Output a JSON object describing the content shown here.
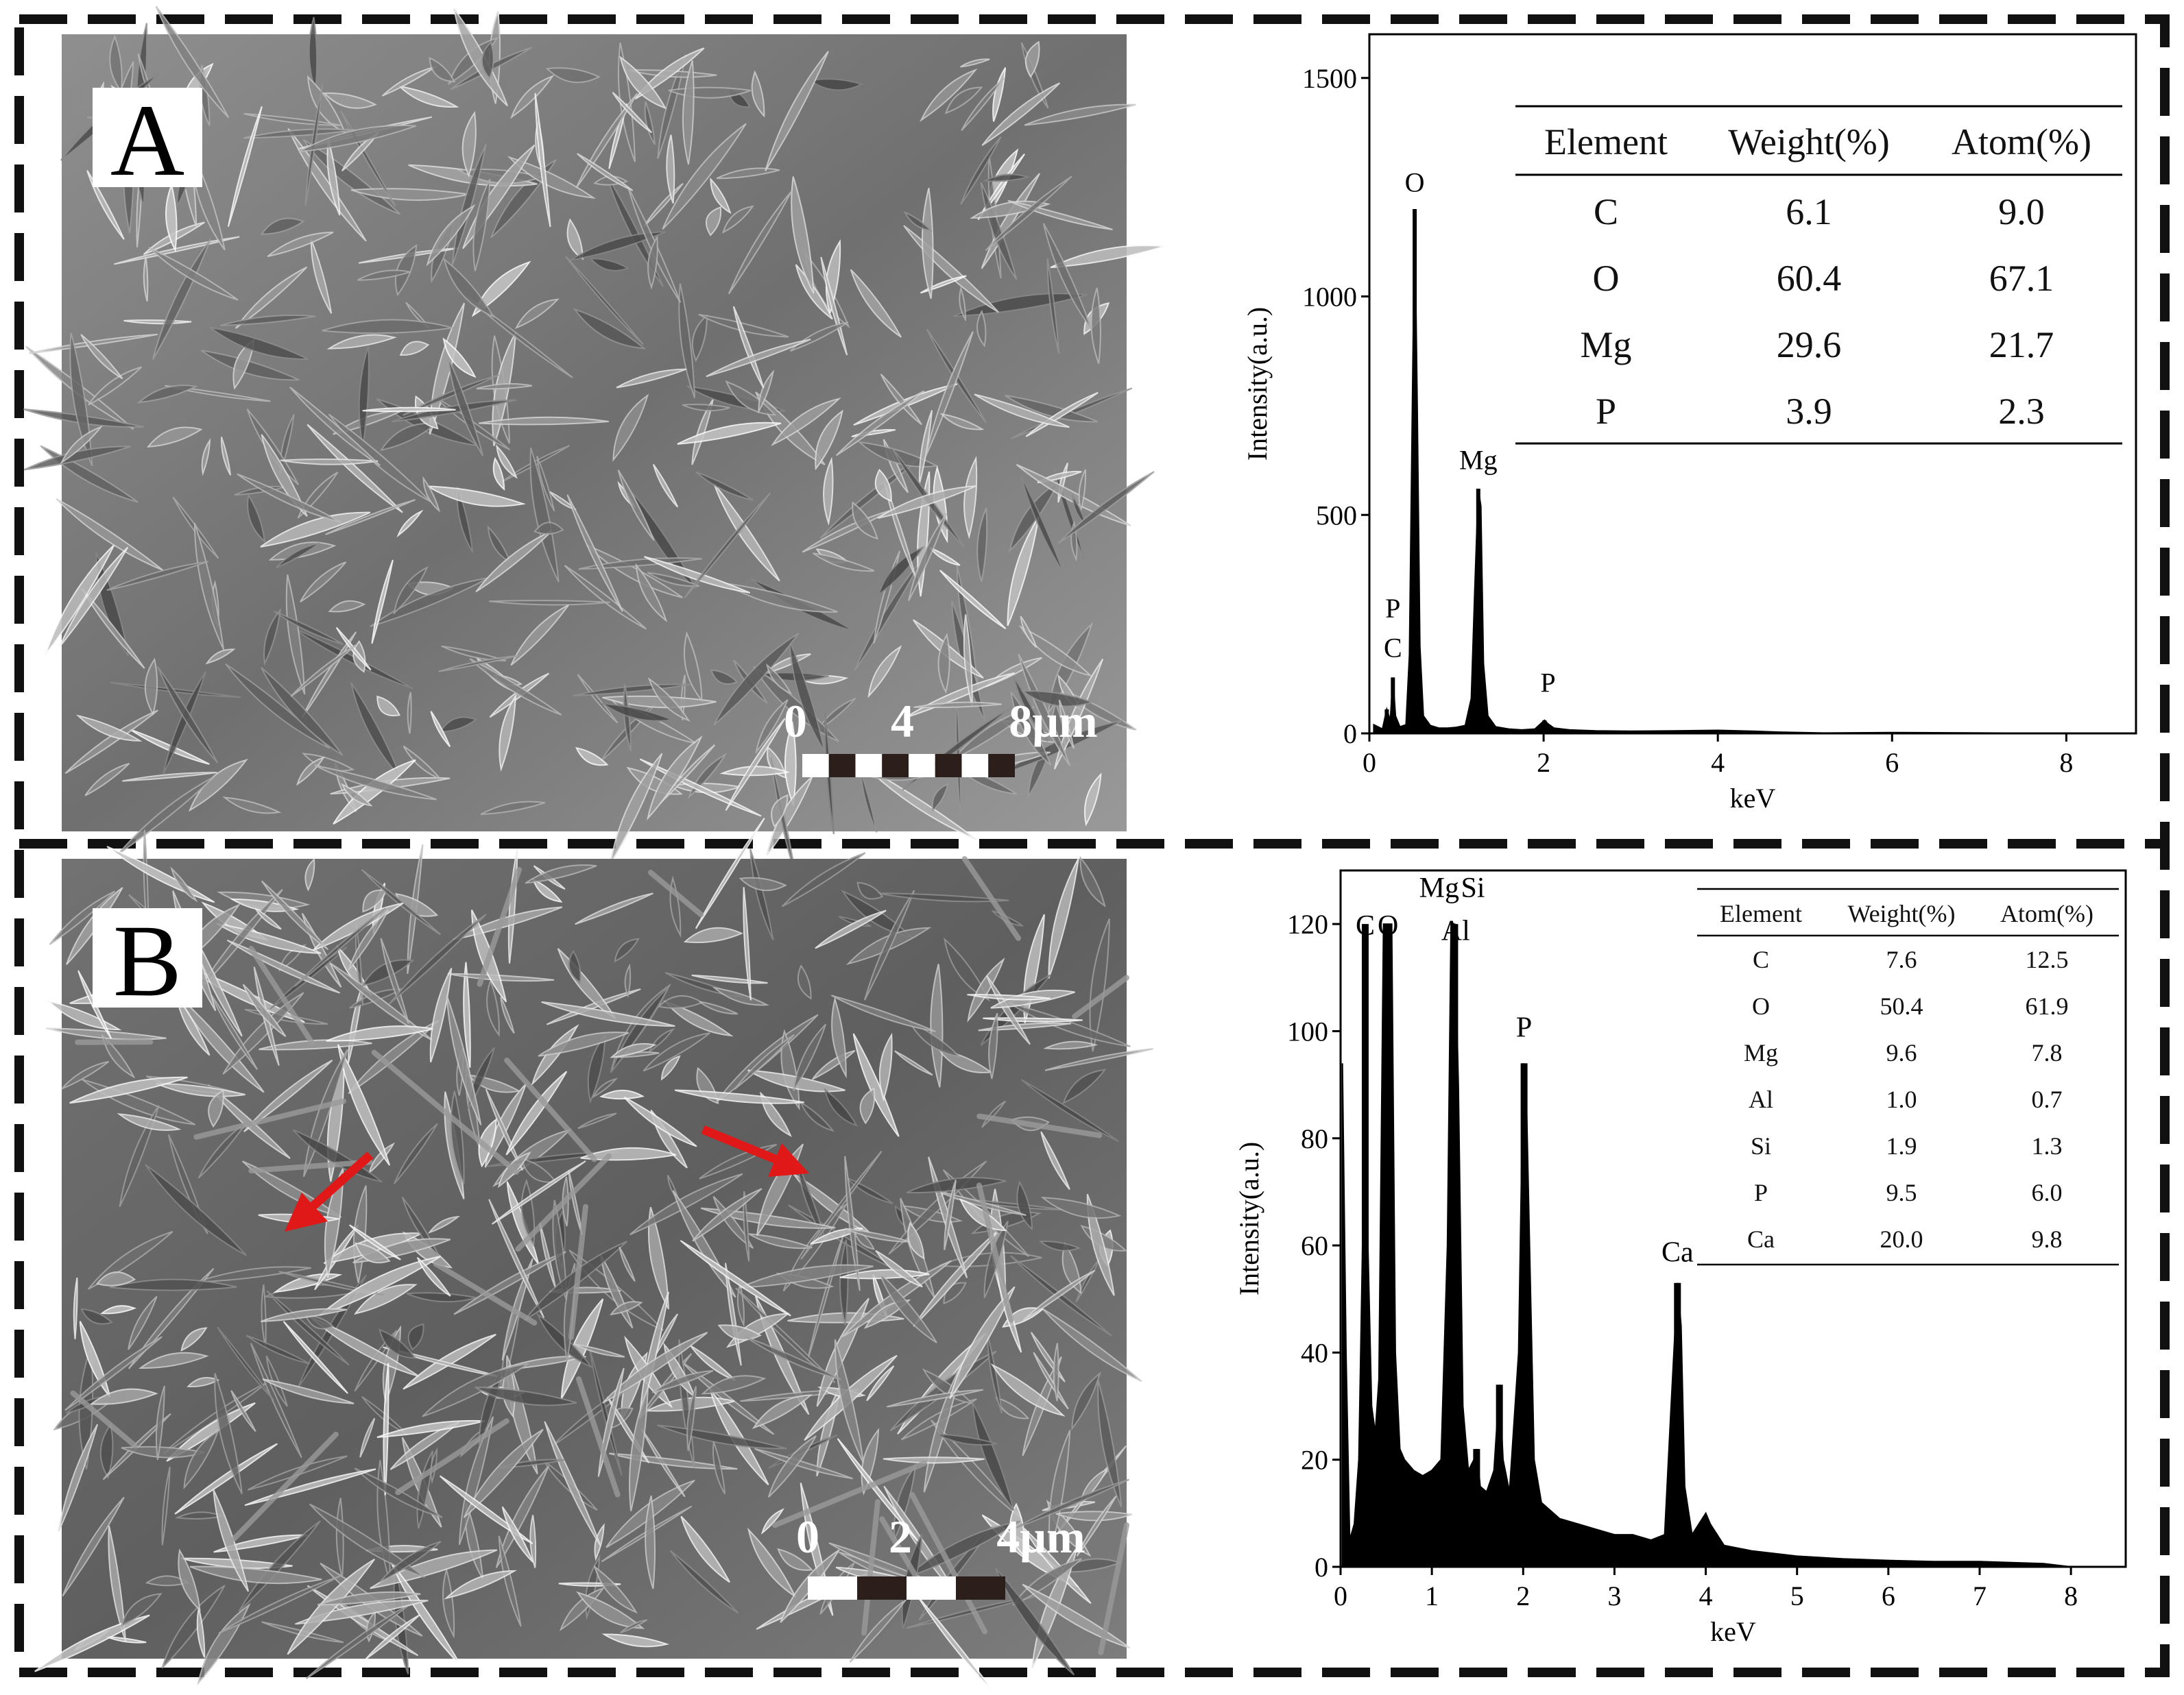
{
  "panels": [
    {
      "label": "A",
      "scale_bar": {
        "ticks": [
          "0",
          "4",
          "8μm"
        ]
      },
      "table": {
        "headers": [
          "Element",
          "Weight(%)",
          "Atom(%)"
        ],
        "rows": [
          [
            "C",
            "6.1",
            "9.0"
          ],
          [
            "O",
            "60.4",
            "67.1"
          ],
          [
            "Mg",
            "29.6",
            "21.7"
          ],
          [
            "P",
            "3.9",
            "2.3"
          ]
        ]
      }
    },
    {
      "label": "B",
      "scale_bar": {
        "ticks": [
          "0",
          "2",
          "4μm"
        ]
      },
      "table": {
        "headers": [
          "Element",
          "Weight(%)",
          "Atom(%)"
        ],
        "rows": [
          [
            "C",
            "7.6",
            "12.5"
          ],
          [
            "O",
            "50.4",
            "61.9"
          ],
          [
            "Mg",
            "9.6",
            "7.8"
          ],
          [
            "Al",
            "1.0",
            "0.7"
          ],
          [
            "Si",
            "1.9",
            "1.3"
          ],
          [
            "P",
            "9.5",
            "6.0"
          ],
          [
            "Ca",
            "20.0",
            "9.8"
          ]
        ]
      }
    }
  ],
  "colors": {
    "frame": "#111111",
    "arrow": "#e01818",
    "sem_bg": "#7a7a7a",
    "spectrum": "#000000"
  },
  "chart_data": [
    {
      "type": "bar",
      "xlabel": "keV",
      "ylabel": "Intensity(a.u.)",
      "xlim": [
        0,
        8.8
      ],
      "ylim": [
        0,
        1600
      ],
      "xticks": [
        0,
        2,
        4,
        6,
        8
      ],
      "yticks": [
        0,
        500,
        1000,
        1500
      ],
      "grid": false,
      "peaks": [
        {
          "label": "C",
          "x": 0.27,
          "y": 128
        },
        {
          "label": "P",
          "x": 0.2,
          "y": 55
        },
        {
          "label": "O",
          "x": 0.52,
          "y": 1200
        },
        {
          "label": "Mg",
          "x": 1.25,
          "y": 560
        },
        {
          "label": "P",
          "x": 2.01,
          "y": 30
        }
      ],
      "peak_labels": [
        {
          "text": "O",
          "x": 0.52,
          "y": 1240
        },
        {
          "text": "Mg",
          "x": 1.25,
          "y": 605
        },
        {
          "text": "P",
          "x": 0.27,
          "y": 265
        },
        {
          "text": "C",
          "x": 0.27,
          "y": 175
        },
        {
          "text": "P",
          "x": 2.05,
          "y": 95
        }
      ],
      "spectrum": [
        [
          0.05,
          20
        ],
        [
          0.15,
          10
        ],
        [
          0.2,
          55
        ],
        [
          0.24,
          30
        ],
        [
          0.27,
          128
        ],
        [
          0.3,
          40
        ],
        [
          0.35,
          15
        ],
        [
          0.42,
          20
        ],
        [
          0.46,
          180
        ],
        [
          0.49,
          700
        ],
        [
          0.52,
          1200
        ],
        [
          0.55,
          740
        ],
        [
          0.58,
          200
        ],
        [
          0.62,
          40
        ],
        [
          0.7,
          18
        ],
        [
          0.8,
          12
        ],
        [
          0.9,
          12
        ],
        [
          1.0,
          14
        ],
        [
          1.1,
          18
        ],
        [
          1.17,
          80
        ],
        [
          1.21,
          330
        ],
        [
          1.25,
          560
        ],
        [
          1.28,
          520
        ],
        [
          1.31,
          160
        ],
        [
          1.36,
          40
        ],
        [
          1.45,
          15
        ],
        [
          1.6,
          10
        ],
        [
          1.75,
          8
        ],
        [
          1.9,
          10
        ],
        [
          2.01,
          30
        ],
        [
          2.05,
          22
        ],
        [
          2.12,
          12
        ],
        [
          2.3,
          8
        ],
        [
          2.6,
          6
        ],
        [
          3.0,
          5
        ],
        [
          3.5,
          6
        ],
        [
          4.0,
          7
        ],
        [
          4.4,
          5
        ],
        [
          4.7,
          3
        ],
        [
          5.2,
          1
        ],
        [
          6.0,
          2
        ],
        [
          8.0,
          0
        ]
      ]
    },
    {
      "type": "bar",
      "xlabel": "keV",
      "ylabel": "Intensity(a.u.)",
      "xlim": [
        0,
        8.6
      ],
      "ylim": [
        0,
        130
      ],
      "xticks": [
        0,
        1,
        2,
        3,
        4,
        5,
        6,
        7,
        8
      ],
      "yticks": [
        0,
        20,
        40,
        60,
        80,
        100,
        120
      ],
      "grid": false,
      "peaks": [
        {
          "label": "C",
          "x": 0.27,
          "y": 120
        },
        {
          "label": "O",
          "x": 0.52,
          "y": 120
        },
        {
          "label": "Mg",
          "x": 1.25,
          "y": 120
        },
        {
          "label": "Al",
          "x": 1.49,
          "y": 22
        },
        {
          "label": "Si",
          "x": 1.74,
          "y": 34
        },
        {
          "label": "P",
          "x": 2.01,
          "y": 94
        },
        {
          "label": "Ca",
          "x": 3.69,
          "y": 53
        }
      ],
      "peak_labels": [
        {
          "text": "C",
          "x": 0.27,
          "y": 118
        },
        {
          "text": "O",
          "x": 0.52,
          "y": 118
        },
        {
          "text": "Mg",
          "x": 1.08,
          "y": 125
        },
        {
          "text": "Si",
          "x": 1.45,
          "y": 125
        },
        {
          "text": "Al",
          "x": 1.26,
          "y": 117
        },
        {
          "text": "P",
          "x": 2.01,
          "y": 99
        },
        {
          "text": "Ca",
          "x": 3.69,
          "y": 57
        }
      ],
      "spectrum": [
        [
          0.02,
          94
        ],
        [
          0.06,
          40
        ],
        [
          0.1,
          5
        ],
        [
          0.15,
          8
        ],
        [
          0.2,
          20
        ],
        [
          0.24,
          60
        ],
        [
          0.27,
          120
        ],
        [
          0.3,
          60
        ],
        [
          0.34,
          30
        ],
        [
          0.38,
          25
        ],
        [
          0.42,
          35
        ],
        [
          0.47,
          120
        ],
        [
          0.52,
          120
        ],
        [
          0.56,
          120
        ],
        [
          0.6,
          40
        ],
        [
          0.65,
          22
        ],
        [
          0.7,
          20
        ],
        [
          0.8,
          18
        ],
        [
          0.9,
          17
        ],
        [
          1.0,
          18
        ],
        [
          1.1,
          20
        ],
        [
          1.17,
          60
        ],
        [
          1.21,
          120
        ],
        [
          1.25,
          120
        ],
        [
          1.29,
          90
        ],
        [
          1.34,
          30
        ],
        [
          1.4,
          18
        ],
        [
          1.46,
          20
        ],
        [
          1.49,
          22
        ],
        [
          1.53,
          15
        ],
        [
          1.6,
          14
        ],
        [
          1.68,
          18
        ],
        [
          1.74,
          34
        ],
        [
          1.78,
          20
        ],
        [
          1.85,
          14
        ],
        [
          1.95,
          40
        ],
        [
          2.0,
          94
        ],
        [
          2.03,
          92
        ],
        [
          2.07,
          60
        ],
        [
          2.12,
          20
        ],
        [
          2.2,
          12
        ],
        [
          2.4,
          9
        ],
        [
          2.6,
          8
        ],
        [
          2.8,
          7
        ],
        [
          3.0,
          6
        ],
        [
          3.2,
          6
        ],
        [
          3.4,
          5
        ],
        [
          3.55,
          6
        ],
        [
          3.62,
          30
        ],
        [
          3.69,
          53
        ],
        [
          3.73,
          45
        ],
        [
          3.77,
          15
        ],
        [
          3.85,
          6
        ],
        [
          4.0,
          10
        ],
        [
          4.05,
          8
        ],
        [
          4.2,
          4
        ],
        [
          4.5,
          3
        ],
        [
          5.0,
          2
        ],
        [
          5.5,
          1.5
        ],
        [
          6.0,
          1.2
        ],
        [
          6.5,
          1
        ],
        [
          7.0,
          1
        ],
        [
          7.7,
          0.6
        ],
        [
          8.0,
          0
        ]
      ]
    }
  ]
}
